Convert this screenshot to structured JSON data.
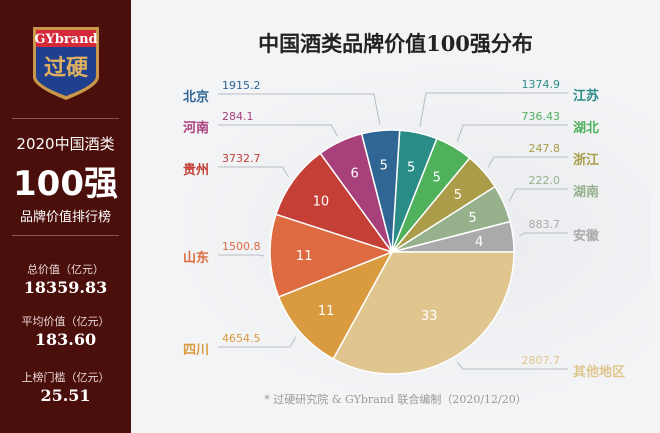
{
  "sidebar": {
    "logo_text": "GYbrand",
    "logo_cn": "过硬",
    "year_line": "2020中国酒类",
    "big": "100强",
    "sub": "品牌价值排行榜",
    "stats": [
      {
        "label": "总价值（亿元）",
        "value": "18359.83"
      },
      {
        "label": "平均价值（亿元）",
        "value": "183.60"
      },
      {
        "label": "上榜门槛（亿元）",
        "value": "25.51"
      }
    ]
  },
  "footnote": "* 过硬研究院 & GYbrand 联合编制（2020/12/20）",
  "chart_data": {
    "type": "pie",
    "title": "中国酒类品牌价值100强分布",
    "slices": [
      {
        "name": "江苏",
        "count": 5,
        "value": "1374.9",
        "color": "#2a8c87"
      },
      {
        "name": "湖北",
        "count": 5,
        "value": "736.43",
        "color": "#4fb15c"
      },
      {
        "name": "浙江",
        "count": 5,
        "value": "247.8",
        "color": "#aa9c48"
      },
      {
        "name": "湖南",
        "count": 5,
        "value": "222.0",
        "color": "#97b18d"
      },
      {
        "name": "安徽",
        "count": 4,
        "value": "883.7",
        "color": "#aaaaaa"
      },
      {
        "name": "其他地区",
        "count": 33,
        "value": "2807.7",
        "color": "#e0c68e"
      },
      {
        "name": "四川",
        "count": 11,
        "value": "4654.5",
        "color": "#da9b40"
      },
      {
        "name": "山东",
        "count": 11,
        "value": "1500.8",
        "color": "#dd6a40"
      },
      {
        "name": "贵州",
        "count": 10,
        "value": "3732.7",
        "color": "#c43f36"
      },
      {
        "name": "河南",
        "count": 6,
        "value": "284.1",
        "color": "#a8407c"
      },
      {
        "name": "北京",
        "count": 5,
        "value": "1915.2",
        "color": "#2f6694"
      }
    ],
    "direction": "clockwise"
  }
}
